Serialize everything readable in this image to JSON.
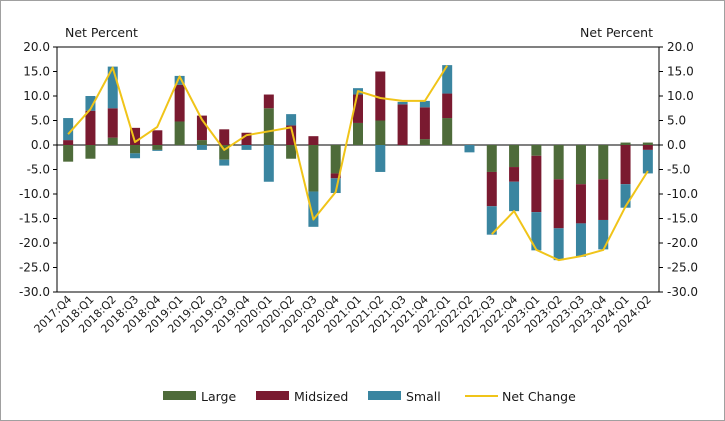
{
  "chart_data": {
    "type": "bar",
    "stacked": true,
    "categories": [
      "2017:Q4",
      "2018:Q1",
      "2018:Q2",
      "2018:Q3",
      "2018:Q4",
      "2019:Q1",
      "2019:Q2",
      "2019:Q3",
      "2019:Q4",
      "2020:Q1",
      "2020:Q2",
      "2020:Q3",
      "2020:Q4",
      "2021:Q1",
      "2021:Q2",
      "2021:Q3",
      "2021:Q4",
      "2022:Q1",
      "2022:Q2",
      "2022:Q3",
      "2022:Q4",
      "2023:Q1",
      "2023:Q2",
      "2023:Q3",
      "2023:Q4",
      "2024:Q1",
      "2024:Q2"
    ],
    "series": [
      {
        "name": "Large",
        "type": "bar",
        "color": "#4e6b3a",
        "values": [
          -3.4,
          -2.8,
          1.5,
          -1.7,
          -1.0,
          4.8,
          1.0,
          -3.0,
          0,
          7.5,
          -2.8,
          -9.5,
          -5.8,
          4.5,
          5.0,
          0,
          1.2,
          5.5,
          0,
          -5.5,
          -4.5,
          -2.2,
          -7.0,
          -8.0,
          -7.0,
          0.5,
          0.5
        ]
      },
      {
        "name": "Midsized",
        "type": "bar",
        "color": "#7a1a30",
        "values": [
          1.0,
          7.0,
          6.0,
          3.5,
          3.0,
          7.5,
          5.0,
          3.2,
          2.5,
          2.8,
          4.0,
          1.8,
          -1.0,
          5.8,
          10.0,
          8.3,
          6.5,
          5.0,
          0,
          -7.0,
          -3.0,
          -11.5,
          -10.0,
          -8.0,
          -8.3,
          -8.0,
          -1.0
        ]
      },
      {
        "name": "Small",
        "type": "bar",
        "color": "#3a85a0",
        "values": [
          4.5,
          3.0,
          8.5,
          -1.0,
          -0.2,
          1.8,
          -1.0,
          -1.2,
          -1.0,
          -7.5,
          2.3,
          -7.2,
          -3.0,
          1.3,
          -5.5,
          0.5,
          1.3,
          5.8,
          -1.5,
          -5.8,
          -6.0,
          -7.8,
          -6.5,
          -6.8,
          -6.0,
          -4.8,
          -4.8
        ]
      },
      {
        "name": "Net Change",
        "type": "line",
        "color": "#f0c419",
        "values": [
          2.2,
          7.3,
          15.8,
          0.6,
          3.7,
          14.0,
          5.2,
          -1.0,
          2.0,
          2.8,
          3.6,
          -15.2,
          -9.6,
          11.0,
          9.6,
          9.0,
          9.0,
          16.2,
          null,
          -18.2,
          -13.5,
          -21.4,
          -23.5,
          -22.7,
          -21.4,
          -12.5,
          -5.3
        ]
      }
    ],
    "ylabel_left": "Net Percent",
    "ylabel_right": "Net Percent",
    "ylim": [
      -30,
      20
    ],
    "yticks": [
      "20.0",
      "15.0",
      "10.0",
      "5.0",
      "0.0",
      "-5.0",
      "-10.0",
      "-15.0",
      "-20.0",
      "-25.0",
      "-30.0"
    ],
    "grid": false,
    "legend_position": "bottom"
  }
}
